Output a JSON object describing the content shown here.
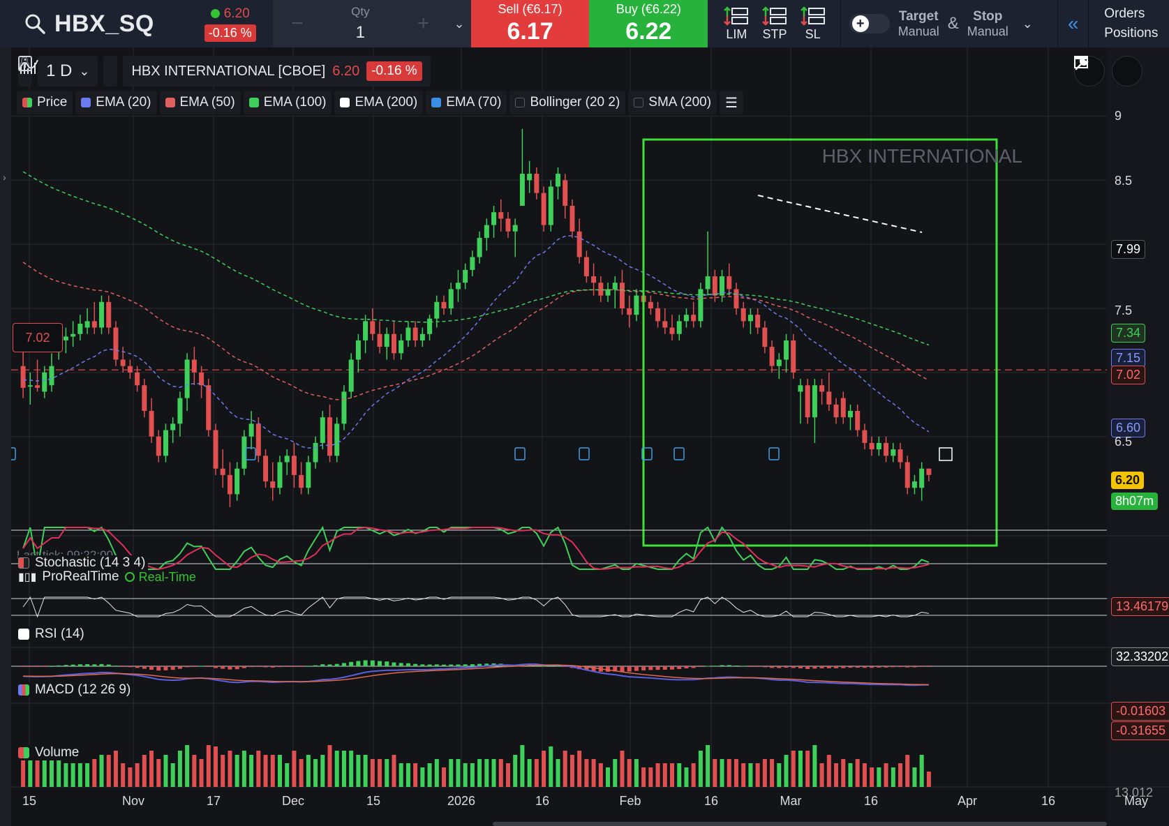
{
  "instrument": {
    "symbol": "HBX_SQ",
    "price": "6.20",
    "change_pct": "-0.16 %",
    "full_name": "HBX INTERNATIONAL [CBOE]",
    "watermark": "HBX INTERNATIONAL"
  },
  "order_ticket": {
    "qty_label": "Qty",
    "qty_value": "1",
    "qty_minus": "−",
    "qty_plus": "+",
    "sell_label": "Sell (€6.17)",
    "sell_value": "6.17",
    "buy_label": "Buy (€6.22)",
    "buy_value": "6.22",
    "order_types": [
      "LIM",
      "STP",
      "SL"
    ],
    "target_label": "Target",
    "target_mode": "Manual",
    "amp": "&",
    "stop_label": "Stop",
    "stop_mode": "Manual",
    "orders_link": "Orders",
    "positions_link": "Positions"
  },
  "chart_header": {
    "timeframe": "1 D",
    "chevron": "⌄"
  },
  "indicators": [
    {
      "label": "Price",
      "color": "#3cc36a",
      "enabled": true
    },
    {
      "label": "EMA (20)",
      "color": "#6c7cf0",
      "enabled": true
    },
    {
      "label": "EMA (50)",
      "color": "#e06060",
      "enabled": true
    },
    {
      "label": "EMA (100)",
      "color": "#3ed05a",
      "enabled": true
    },
    {
      "label": "EMA (200)",
      "color": "#ffffff",
      "enabled": true
    },
    {
      "label": "EMA (70)",
      "color": "#3d8fe6",
      "enabled": true
    },
    {
      "label": "Bollinger (20 2)",
      "color": "",
      "enabled": false
    },
    {
      "label": "SMA (200)",
      "color": "",
      "enabled": false
    }
  ],
  "status": {
    "last_tick": "Last tick: 09:22:00",
    "provider": "ProRealTime",
    "realtime": "Real-Time"
  },
  "price_axis": {
    "ticks": [
      "9",
      "8.5",
      "7.99",
      "7.5",
      "7.34",
      "7.15",
      "7.02",
      "6.60",
      "6.5",
      "6.20",
      "8h07m"
    ],
    "level_tag": "7.02"
  },
  "panels": {
    "stochastic": {
      "title": "Stochastic (14 3 4)",
      "value": "13.46179"
    },
    "rsi": {
      "title": "RSI (14)",
      "value": "32.33202"
    },
    "macd": {
      "title": "MACD (12 26 9)",
      "value1": "-0.01603",
      "value2": "-0.31655"
    },
    "volume": {
      "title": "Volume",
      "value": "13.012"
    }
  },
  "x_axis": [
    "15",
    "Nov",
    "17",
    "Dec",
    "15",
    "2026",
    "16",
    "Feb",
    "16",
    "Mar",
    "16",
    "Apr",
    "16",
    "May"
  ],
  "colors": {
    "up": "#3ed05a",
    "down": "#e05050",
    "highlight_box": "#3ee03a",
    "sell": "#e23c3c",
    "buy": "#27b33b"
  },
  "chart_data": {
    "type": "candlestick",
    "ylim": [
      5.9,
      9.1
    ],
    "candles": [
      [
        7.05,
        7.25,
        6.8,
        6.88
      ],
      [
        6.9,
        7.0,
        6.75,
        6.9
      ],
      [
        6.9,
        7.1,
        6.85,
        6.88
      ],
      [
        6.85,
        7.05,
        6.8,
        7.0
      ],
      [
        6.9,
        7.15,
        6.85,
        7.05
      ],
      [
        7.2,
        7.35,
        7.1,
        7.25
      ],
      [
        7.25,
        7.35,
        7.15,
        7.28
      ],
      [
        7.28,
        7.4,
        7.2,
        7.3
      ],
      [
        7.3,
        7.45,
        7.25,
        7.38
      ],
      [
        7.35,
        7.5,
        7.3,
        7.4
      ],
      [
        7.4,
        7.55,
        7.3,
        7.35
      ],
      [
        7.35,
        7.6,
        7.3,
        7.55
      ],
      [
        7.55,
        7.6,
        7.3,
        7.35
      ],
      [
        7.35,
        7.4,
        7.05,
        7.1
      ],
      [
        7.1,
        7.2,
        7.0,
        7.05
      ],
      [
        7.05,
        7.1,
        6.95,
        7.0
      ],
      [
        7.0,
        7.05,
        6.85,
        6.9
      ],
      [
        6.9,
        6.95,
        6.65,
        6.7
      ],
      [
        6.7,
        6.8,
        6.45,
        6.5
      ],
      [
        6.5,
        6.55,
        6.3,
        6.35
      ],
      [
        6.35,
        6.6,
        6.3,
        6.55
      ],
      [
        6.55,
        6.65,
        6.45,
        6.6
      ],
      [
        6.6,
        6.85,
        6.5,
        6.8
      ],
      [
        6.8,
        7.15,
        6.7,
        7.1
      ],
      [
        7.1,
        7.2,
        6.9,
        7.0
      ],
      [
        7.0,
        7.05,
        6.8,
        6.9
      ],
      [
        6.9,
        6.95,
        6.5,
        6.55
      ],
      [
        6.55,
        6.6,
        6.2,
        6.25
      ],
      [
        6.25,
        6.4,
        6.1,
        6.2
      ],
      [
        6.2,
        6.3,
        5.95,
        6.05
      ],
      [
        6.05,
        6.3,
        6.0,
        6.25
      ],
      [
        6.25,
        6.55,
        6.2,
        6.5
      ],
      [
        6.5,
        6.7,
        6.4,
        6.6
      ],
      [
        6.6,
        6.65,
        6.3,
        6.35
      ],
      [
        6.35,
        6.4,
        6.1,
        6.15
      ],
      [
        6.15,
        6.3,
        6.0,
        6.1
      ],
      [
        6.1,
        6.35,
        6.05,
        6.3
      ],
      [
        6.3,
        6.4,
        6.2,
        6.35
      ],
      [
        6.35,
        6.45,
        6.1,
        6.2
      ],
      [
        6.2,
        6.3,
        6.05,
        6.1
      ],
      [
        6.1,
        6.35,
        6.05,
        6.3
      ],
      [
        6.3,
        6.5,
        6.25,
        6.45
      ],
      [
        6.45,
        6.7,
        6.4,
        6.65
      ],
      [
        6.65,
        6.75,
        6.3,
        6.35
      ],
      [
        6.35,
        6.65,
        6.3,
        6.6
      ],
      [
        6.6,
        6.9,
        6.55,
        6.85
      ],
      [
        6.85,
        7.15,
        6.8,
        7.1
      ],
      [
        7.1,
        7.3,
        7.0,
        7.25
      ],
      [
        7.25,
        7.45,
        7.15,
        7.4
      ],
      [
        7.4,
        7.5,
        7.25,
        7.3
      ],
      [
        7.3,
        7.4,
        7.15,
        7.2
      ],
      [
        7.2,
        7.35,
        7.1,
        7.3
      ],
      [
        7.3,
        7.4,
        7.1,
        7.15
      ],
      [
        7.15,
        7.3,
        7.1,
        7.25
      ],
      [
        7.25,
        7.4,
        7.2,
        7.35
      ],
      [
        7.35,
        7.4,
        7.2,
        7.25
      ],
      [
        7.25,
        7.35,
        7.2,
        7.3
      ],
      [
        7.3,
        7.45,
        7.25,
        7.42
      ],
      [
        7.42,
        7.6,
        7.35,
        7.55
      ],
      [
        7.55,
        7.6,
        7.45,
        7.5
      ],
      [
        7.5,
        7.7,
        7.45,
        7.65
      ],
      [
        7.65,
        7.8,
        7.55,
        7.7
      ],
      [
        7.7,
        7.85,
        7.65,
        7.8
      ],
      [
        7.8,
        7.95,
        7.75,
        7.9
      ],
      [
        7.9,
        8.1,
        7.85,
        8.05
      ],
      [
        8.05,
        8.2,
        7.95,
        8.15
      ],
      [
        8.15,
        8.3,
        8.05,
        8.25
      ],
      [
        8.25,
        8.35,
        8.1,
        8.2
      ],
      [
        8.2,
        8.25,
        8.05,
        8.1
      ],
      [
        8.1,
        8.2,
        7.9,
        8.15
      ],
      [
        8.3,
        8.9,
        8.3,
        8.55
      ],
      [
        8.5,
        8.65,
        8.4,
        8.55
      ],
      [
        8.55,
        8.6,
        8.35,
        8.4
      ],
      [
        8.4,
        8.45,
        8.1,
        8.15
      ],
      [
        8.15,
        8.5,
        8.1,
        8.45
      ],
      [
        8.45,
        8.6,
        8.35,
        8.55
      ],
      [
        8.5,
        8.55,
        8.2,
        8.3
      ],
      [
        8.3,
        8.35,
        8.05,
        8.1
      ],
      [
        8.1,
        8.2,
        7.85,
        7.9
      ],
      [
        7.9,
        7.95,
        7.7,
        7.75
      ],
      [
        7.75,
        7.85,
        7.6,
        7.7
      ],
      [
        7.7,
        7.75,
        7.55,
        7.6
      ],
      [
        7.6,
        7.7,
        7.55,
        7.65
      ],
      [
        7.65,
        7.75,
        7.5,
        7.7
      ],
      [
        7.7,
        7.8,
        7.45,
        7.5
      ],
      [
        7.5,
        7.6,
        7.35,
        7.45
      ],
      [
        7.45,
        7.65,
        7.4,
        7.6
      ],
      [
        7.6,
        7.65,
        7.5,
        7.55
      ],
      [
        7.55,
        7.6,
        7.45,
        7.5
      ],
      [
        7.5,
        7.55,
        7.35,
        7.4
      ],
      [
        7.4,
        7.5,
        7.3,
        7.35
      ],
      [
        7.35,
        7.45,
        7.25,
        7.3
      ],
      [
        7.3,
        7.45,
        7.25,
        7.4
      ],
      [
        7.4,
        7.5,
        7.35,
        7.45
      ],
      [
        7.45,
        7.55,
        7.35,
        7.4
      ],
      [
        7.4,
        7.7,
        7.35,
        7.65
      ],
      [
        7.65,
        8.1,
        7.6,
        7.75
      ],
      [
        7.75,
        7.8,
        7.55,
        7.6
      ],
      [
        7.6,
        7.8,
        7.55,
        7.75
      ],
      [
        7.75,
        7.85,
        7.6,
        7.65
      ],
      [
        7.65,
        7.7,
        7.45,
        7.5
      ],
      [
        7.5,
        7.55,
        7.35,
        7.4
      ],
      [
        7.4,
        7.5,
        7.3,
        7.45
      ],
      [
        7.45,
        7.5,
        7.3,
        7.35
      ],
      [
        7.35,
        7.4,
        7.15,
        7.2
      ],
      [
        7.2,
        7.25,
        7.0,
        7.05
      ],
      [
        7.05,
        7.15,
        6.95,
        7.1
      ],
      [
        7.1,
        7.3,
        7.0,
        7.25
      ],
      [
        7.25,
        7.3,
        6.95,
        7.0
      ],
      [
        6.85,
        6.95,
        6.6,
        6.9
      ],
      [
        6.9,
        6.95,
        6.6,
        6.65
      ],
      [
        6.65,
        6.95,
        6.45,
        6.9
      ],
      [
        6.9,
        6.95,
        6.75,
        6.85
      ],
      [
        6.85,
        7.0,
        6.7,
        6.75
      ],
      [
        6.75,
        6.8,
        6.6,
        6.65
      ],
      [
        6.8,
        6.85,
        6.6,
        6.65
      ],
      [
        6.65,
        6.75,
        6.55,
        6.7
      ],
      [
        6.7,
        6.75,
        6.5,
        6.55
      ],
      [
        6.55,
        6.6,
        6.4,
        6.45
      ],
      [
        6.45,
        6.5,
        6.35,
        6.4
      ],
      [
        6.4,
        6.5,
        6.35,
        6.45
      ],
      [
        6.45,
        6.5,
        6.3,
        6.35
      ],
      [
        6.35,
        6.45,
        6.3,
        6.4
      ],
      [
        6.4,
        6.45,
        6.25,
        6.3
      ],
      [
        6.3,
        6.35,
        6.05,
        6.1
      ],
      [
        6.1,
        6.2,
        6.05,
        6.15
      ],
      [
        6.1,
        6.3,
        6.0,
        6.25
      ],
      [
        6.25,
        6.25,
        6.15,
        6.2
      ]
    ]
  }
}
